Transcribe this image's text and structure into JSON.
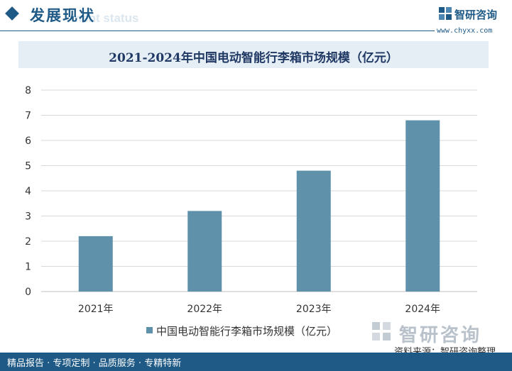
{
  "header": {
    "title": "发展现状",
    "subtitle": "ment status",
    "brand_name": "智研咨询",
    "brand_url": "www.chyxx.com"
  },
  "colors": {
    "primary": "#1f5a86",
    "bar": "#5f92aa",
    "title_band": "#e6eef5"
  },
  "chart_data": {
    "type": "bar",
    "title": "2021-2024年中国电动智能行李箱市场规模（亿元）",
    "categories": [
      "2021年",
      "2022年",
      "2023年",
      "2024年"
    ],
    "series": [
      {
        "name": "中国电动智能行李箱市场规模（亿元）",
        "values": [
          2.2,
          3.2,
          4.8,
          6.8
        ]
      }
    ],
    "ylim": [
      0,
      8
    ],
    "yticks": [
      0,
      1,
      2,
      3,
      4,
      5,
      6,
      7,
      8
    ],
    "grid": true,
    "legend": "bottom"
  },
  "watermark": {
    "text": "智研咨询"
  },
  "source": "资料来源：智研咨询整理",
  "footer": {
    "text": "精品报告 · 专项定制 · 品质服务 · 专精特新"
  }
}
